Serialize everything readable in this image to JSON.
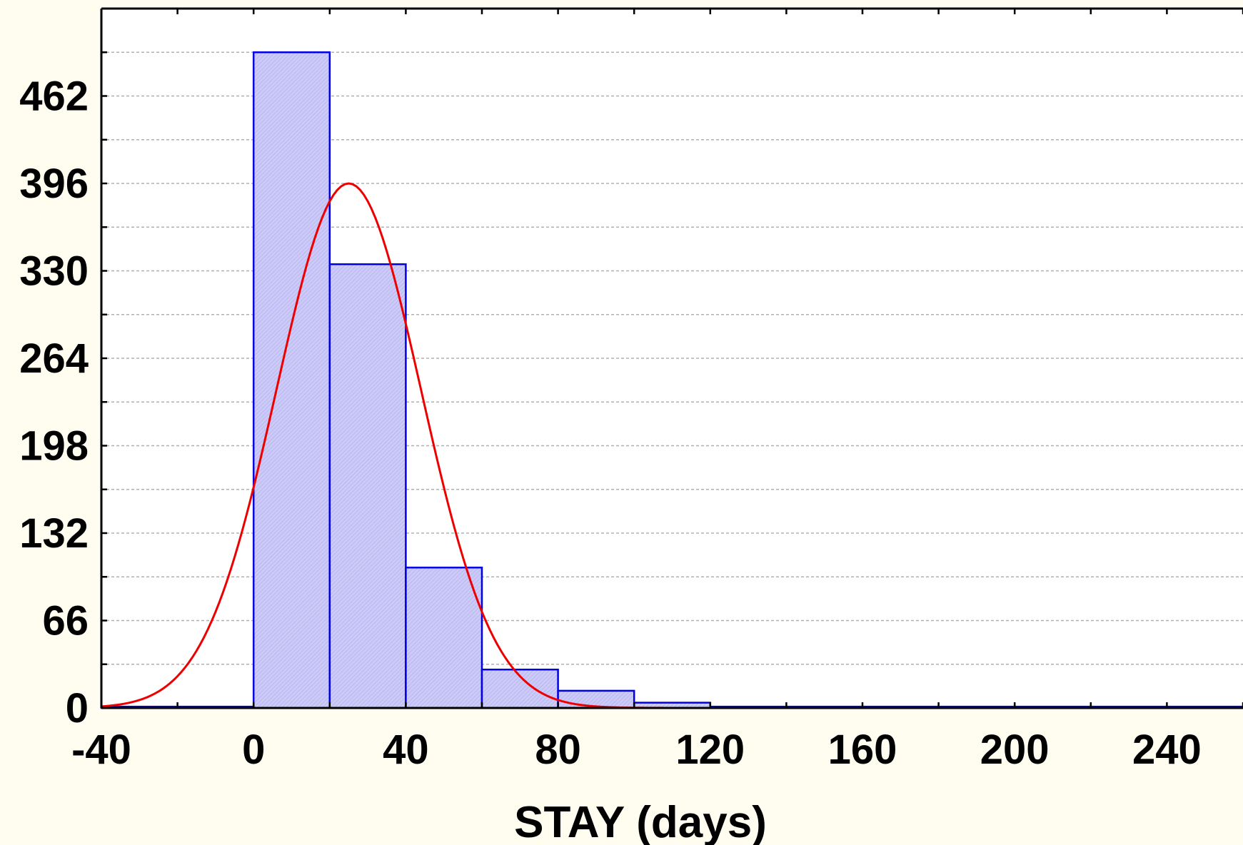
{
  "chart_data": {
    "type": "bar",
    "subtype": "histogram",
    "title": "",
    "xlabel": "STAY (days)",
    "ylabel": "",
    "xlim": [
      -40,
      260
    ],
    "ylim": [
      0,
      528
    ],
    "x_ticks": [
      "-40",
      "0",
      "40",
      "80",
      "120",
      "160",
      "200",
      "240"
    ],
    "y_ticks": [
      "0",
      "66",
      "132",
      "198",
      "264",
      "330",
      "396",
      "462"
    ],
    "bins": [
      {
        "from": -40,
        "to": -20,
        "count": 1
      },
      {
        "from": -20,
        "to": 0,
        "count": 1
      },
      {
        "from": 0,
        "to": 20,
        "count": 495
      },
      {
        "from": 20,
        "to": 40,
        "count": 335
      },
      {
        "from": 40,
        "to": 60,
        "count": 106
      },
      {
        "from": 60,
        "to": 80,
        "count": 29
      },
      {
        "from": 80,
        "to": 100,
        "count": 13
      },
      {
        "from": 100,
        "to": 120,
        "count": 4
      },
      {
        "from": 120,
        "to": 140,
        "count": 1
      },
      {
        "from": 140,
        "to": 160,
        "count": 1
      },
      {
        "from": 160,
        "to": 180,
        "count": 1
      },
      {
        "from": 180,
        "to": 200,
        "count": 1
      },
      {
        "from": 200,
        "to": 220,
        "count": 1
      },
      {
        "from": 220,
        "to": 240,
        "count": 1
      },
      {
        "from": 240,
        "to": 260,
        "count": 1
      }
    ],
    "fit_curve": {
      "type": "normal",
      "mean": 25,
      "sd": 19,
      "peak": 396,
      "color": "#ee0000"
    },
    "grid": true,
    "legend": "none",
    "colors": {
      "bar_fill": "#c8c8f4",
      "bar_stroke": "#0000e0",
      "background": "#fffdf0",
      "plot_area": "#ffffff",
      "grid": "#b0b0b0"
    }
  }
}
